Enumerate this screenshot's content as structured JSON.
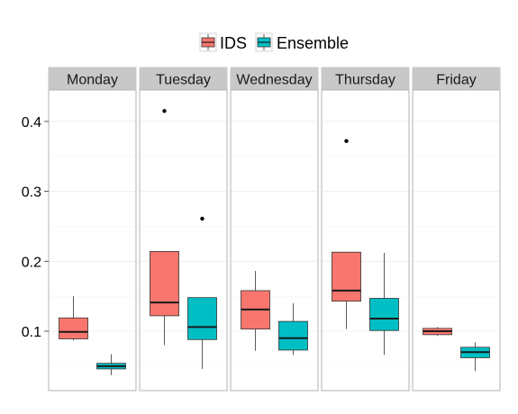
{
  "chart_data": {
    "type": "boxplot",
    "facets": [
      "Monday",
      "Tuesday",
      "Wednesday",
      "Thursday",
      "Friday"
    ],
    "ylim": [
      0.015,
      0.445
    ],
    "yticks": [
      0.1,
      0.2,
      0.3,
      0.4
    ],
    "ytick_labels": [
      "0.1",
      "0.2",
      "0.3",
      "0.4"
    ],
    "grid": true,
    "legend_position": "top",
    "series": [
      {
        "name": "IDS",
        "color": "#F8766D",
        "boxes": [
          {
            "whisker_low": 0.087,
            "q1": 0.089,
            "median": 0.099,
            "q3": 0.119,
            "whisker_high": 0.15,
            "outliers": []
          },
          {
            "whisker_low": 0.08,
            "q1": 0.122,
            "median": 0.141,
            "q3": 0.214,
            "whisker_high": 0.214,
            "outliers": [
              0.415
            ]
          },
          {
            "whisker_low": 0.072,
            "q1": 0.103,
            "median": 0.131,
            "q3": 0.158,
            "whisker_high": 0.186,
            "outliers": []
          },
          {
            "whisker_low": 0.103,
            "q1": 0.143,
            "median": 0.158,
            "q3": 0.213,
            "whisker_high": 0.213,
            "outliers": [
              0.372
            ]
          },
          {
            "whisker_low": 0.093,
            "q1": 0.095,
            "median": 0.1,
            "q3": 0.104,
            "whisker_high": 0.106,
            "outliers": []
          }
        ]
      },
      {
        "name": "Ensemble",
        "color": "#00BFC4",
        "boxes": [
          {
            "whisker_low": 0.037,
            "q1": 0.046,
            "median": 0.05,
            "q3": 0.054,
            "whisker_high": 0.067,
            "outliers": []
          },
          {
            "whisker_low": 0.046,
            "q1": 0.088,
            "median": 0.106,
            "q3": 0.148,
            "whisker_high": 0.148,
            "outliers": [
              0.261
            ]
          },
          {
            "whisker_low": 0.066,
            "q1": 0.073,
            "median": 0.09,
            "q3": 0.114,
            "whisker_high": 0.14,
            "outliers": []
          },
          {
            "whisker_low": 0.066,
            "q1": 0.101,
            "median": 0.118,
            "q3": 0.147,
            "whisker_high": 0.212,
            "outliers": []
          },
          {
            "whisker_low": 0.043,
            "q1": 0.062,
            "median": 0.07,
            "q3": 0.077,
            "whisker_high": 0.084,
            "outliers": []
          }
        ]
      }
    ]
  }
}
